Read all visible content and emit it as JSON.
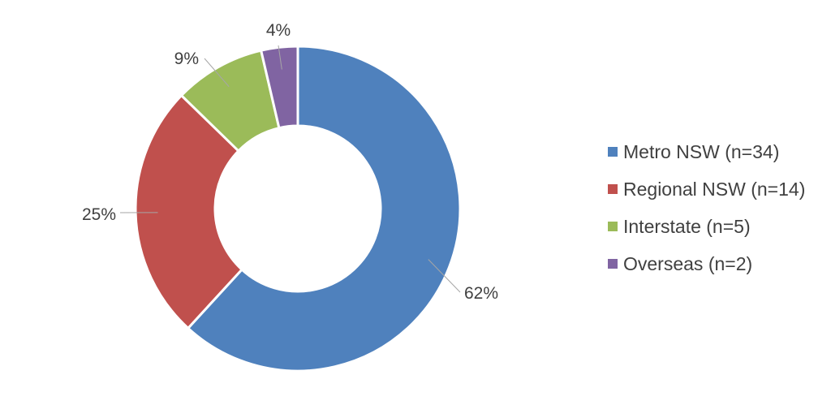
{
  "chart_data": {
    "type": "pie",
    "donut": true,
    "categories": [
      "Metro NSW (n=34)",
      "Regional NSW (n=14)",
      "Interstate (n=5)",
      "Overseas (n=2)"
    ],
    "values": [
      34,
      14,
      5,
      2
    ],
    "data_labels": [
      "62%",
      "25%",
      "9%",
      "4%"
    ],
    "colors": [
      "#4f81bd",
      "#c0504d",
      "#9bbb59",
      "#8064a2"
    ],
    "legend_position": "right",
    "start_angle": "12 o'clock, clockwise"
  }
}
